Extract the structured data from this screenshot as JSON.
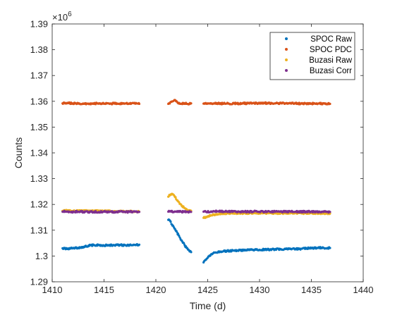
{
  "chart_data": {
    "type": "scatter",
    "xlabel": "Time (d)",
    "ylabel": "Counts",
    "y_multiplier_label": "×10",
    "y_multiplier_exponent": "6",
    "xlim": [
      1410,
      1440
    ],
    "ylim": [
      1.29,
      1.39
    ],
    "xticks": [
      1410,
      1415,
      1420,
      1425,
      1430,
      1435,
      1440
    ],
    "xtick_labels": [
      "1410",
      "1415",
      "1420",
      "1425",
      "1430",
      "1435",
      "1440"
    ],
    "yticks": [
      1.29,
      1.3,
      1.31,
      1.32,
      1.33,
      1.34,
      1.35,
      1.36,
      1.37,
      1.38,
      1.39
    ],
    "ytick_labels": [
      "1.29",
      "1.3",
      "1.31",
      "1.32",
      "1.33",
      "1.34",
      "1.35",
      "1.36",
      "1.37",
      "1.38",
      "1.39"
    ],
    "grid": false,
    "legend_position": "top-right",
    "series": [
      {
        "name": "SPOC Raw",
        "color": "#0072BD",
        "points": [
          [
            1411.0,
            1.303
          ],
          [
            1411.5,
            1.3028
          ],
          [
            1412.0,
            1.303
          ],
          [
            1412.5,
            1.3032
          ],
          [
            1413.0,
            1.3035
          ],
          [
            1413.5,
            1.304
          ],
          [
            1414.0,
            1.3042
          ],
          [
            1414.5,
            1.3042
          ],
          [
            1415.0,
            1.3041
          ],
          [
            1415.5,
            1.3042
          ],
          [
            1416.0,
            1.3042
          ],
          [
            1416.5,
            1.3043
          ],
          [
            1417.0,
            1.3042
          ],
          [
            1417.5,
            1.3042
          ],
          [
            1418.0,
            1.3043
          ],
          [
            1418.4,
            1.3044
          ],
          [
            1421.2,
            1.314
          ],
          [
            1421.4,
            1.3135
          ],
          [
            1421.6,
            1.3118
          ],
          [
            1421.9,
            1.31
          ],
          [
            1422.2,
            1.308
          ],
          [
            1422.5,
            1.306
          ],
          [
            1422.8,
            1.304
          ],
          [
            1423.1,
            1.3025
          ],
          [
            1423.4,
            1.3015
          ],
          [
            1424.6,
            1.2975
          ],
          [
            1424.8,
            1.2985
          ],
          [
            1425.1,
            1.2998
          ],
          [
            1425.5,
            1.301
          ],
          [
            1426.0,
            1.3015
          ],
          [
            1426.5,
            1.3018
          ],
          [
            1427.0,
            1.302
          ],
          [
            1427.5,
            1.3021
          ],
          [
            1428.0,
            1.3022
          ],
          [
            1428.5,
            1.3023
          ],
          [
            1429.0,
            1.3023
          ],
          [
            1429.5,
            1.3024
          ],
          [
            1430.0,
            1.3024
          ],
          [
            1430.5,
            1.3025
          ],
          [
            1431.0,
            1.3025
          ],
          [
            1431.5,
            1.3026
          ],
          [
            1432.0,
            1.3026
          ],
          [
            1432.5,
            1.3027
          ],
          [
            1433.0,
            1.3027
          ],
          [
            1433.5,
            1.3028
          ],
          [
            1434.0,
            1.3028
          ],
          [
            1434.5,
            1.303
          ],
          [
            1435.0,
            1.3031
          ],
          [
            1435.5,
            1.3031
          ],
          [
            1436.0,
            1.3032
          ],
          [
            1436.8,
            1.3031
          ]
        ]
      },
      {
        "name": "SPOC PDC",
        "color": "#D95319",
        "points": [
          [
            1411.0,
            1.3592
          ],
          [
            1411.5,
            1.3593
          ],
          [
            1412.0,
            1.3592
          ],
          [
            1412.5,
            1.3591
          ],
          [
            1413.0,
            1.359
          ],
          [
            1413.5,
            1.3591
          ],
          [
            1414.0,
            1.3591
          ],
          [
            1414.5,
            1.3592
          ],
          [
            1415.0,
            1.3591
          ],
          [
            1415.5,
            1.3591
          ],
          [
            1416.0,
            1.3592
          ],
          [
            1416.5,
            1.3591
          ],
          [
            1417.0,
            1.3591
          ],
          [
            1417.5,
            1.3591
          ],
          [
            1418.0,
            1.3591
          ],
          [
            1418.4,
            1.359
          ],
          [
            1421.2,
            1.359
          ],
          [
            1421.5,
            1.3598
          ],
          [
            1421.8,
            1.3605
          ],
          [
            1422.1,
            1.3595
          ],
          [
            1422.4,
            1.359
          ],
          [
            1422.7,
            1.3593
          ],
          [
            1423.0,
            1.359
          ],
          [
            1423.4,
            1.3592
          ],
          [
            1424.6,
            1.3591
          ],
          [
            1425.0,
            1.3592
          ],
          [
            1425.5,
            1.3591
          ],
          [
            1426.0,
            1.3592
          ],
          [
            1426.5,
            1.3591
          ],
          [
            1427.0,
            1.3591
          ],
          [
            1427.5,
            1.3592
          ],
          [
            1428.0,
            1.3591
          ],
          [
            1428.5,
            1.3592
          ],
          [
            1429.0,
            1.3592
          ],
          [
            1429.5,
            1.3593
          ],
          [
            1430.0,
            1.3592
          ],
          [
            1430.5,
            1.3593
          ],
          [
            1431.0,
            1.3592
          ],
          [
            1431.5,
            1.3592
          ],
          [
            1432.0,
            1.3593
          ],
          [
            1432.5,
            1.3592
          ],
          [
            1433.0,
            1.3592
          ],
          [
            1433.5,
            1.3592
          ],
          [
            1434.0,
            1.3591
          ],
          [
            1434.5,
            1.3592
          ],
          [
            1435.0,
            1.3591
          ],
          [
            1435.5,
            1.3592
          ],
          [
            1436.0,
            1.3591
          ],
          [
            1436.8,
            1.359
          ]
        ]
      },
      {
        "name": "Buzasi Raw",
        "color": "#EDB120",
        "points": [
          [
            1411.0,
            1.3175
          ],
          [
            1411.5,
            1.3176
          ],
          [
            1412.0,
            1.3175
          ],
          [
            1412.5,
            1.3176
          ],
          [
            1413.0,
            1.3175
          ],
          [
            1413.5,
            1.3175
          ],
          [
            1414.0,
            1.3174
          ],
          [
            1414.5,
            1.3175
          ],
          [
            1415.0,
            1.3174
          ],
          [
            1415.5,
            1.3174
          ],
          [
            1416.0,
            1.3174
          ],
          [
            1416.5,
            1.3173
          ],
          [
            1417.0,
            1.3173
          ],
          [
            1417.5,
            1.3173
          ],
          [
            1418.0,
            1.3172
          ],
          [
            1418.4,
            1.3172
          ],
          [
            1421.2,
            1.323
          ],
          [
            1421.4,
            1.3238
          ],
          [
            1421.6,
            1.324
          ],
          [
            1421.8,
            1.3232
          ],
          [
            1422.1,
            1.3215
          ],
          [
            1422.4,
            1.32
          ],
          [
            1422.7,
            1.3188
          ],
          [
            1423.0,
            1.318
          ],
          [
            1423.4,
            1.3175
          ],
          [
            1424.6,
            1.3148
          ],
          [
            1424.9,
            1.3152
          ],
          [
            1425.3,
            1.3158
          ],
          [
            1425.8,
            1.3162
          ],
          [
            1426.3,
            1.3165
          ],
          [
            1427.0,
            1.3166
          ],
          [
            1427.5,
            1.3166
          ],
          [
            1428.0,
            1.3166
          ],
          [
            1428.5,
            1.3166
          ],
          [
            1429.0,
            1.3166
          ],
          [
            1429.5,
            1.3166
          ],
          [
            1430.0,
            1.3166
          ],
          [
            1430.5,
            1.3166
          ],
          [
            1431.0,
            1.3166
          ],
          [
            1431.5,
            1.3166
          ],
          [
            1432.0,
            1.3166
          ],
          [
            1432.5,
            1.3166
          ],
          [
            1433.0,
            1.3166
          ],
          [
            1433.5,
            1.3166
          ],
          [
            1434.0,
            1.3166
          ],
          [
            1434.5,
            1.3166
          ],
          [
            1435.0,
            1.3166
          ],
          [
            1435.5,
            1.3166
          ],
          [
            1436.0,
            1.3166
          ],
          [
            1436.8,
            1.3165
          ]
        ]
      },
      {
        "name": "Buzasi Corr",
        "color": "#7E2F8E",
        "points": [
          [
            1411.0,
            1.3172
          ],
          [
            1411.5,
            1.3172
          ],
          [
            1412.0,
            1.3171
          ],
          [
            1412.5,
            1.3172
          ],
          [
            1413.0,
            1.3171
          ],
          [
            1413.5,
            1.3171
          ],
          [
            1414.0,
            1.3171
          ],
          [
            1414.5,
            1.3171
          ],
          [
            1415.0,
            1.3172
          ],
          [
            1415.5,
            1.3171
          ],
          [
            1416.0,
            1.3171
          ],
          [
            1416.5,
            1.3172
          ],
          [
            1417.0,
            1.3171
          ],
          [
            1417.5,
            1.3171
          ],
          [
            1418.0,
            1.3172
          ],
          [
            1418.4,
            1.3171
          ],
          [
            1421.2,
            1.3172
          ],
          [
            1421.5,
            1.3172
          ],
          [
            1421.8,
            1.3172
          ],
          [
            1422.1,
            1.3171
          ],
          [
            1422.4,
            1.3172
          ],
          [
            1422.7,
            1.3171
          ],
          [
            1423.0,
            1.3171
          ],
          [
            1423.4,
            1.3171
          ],
          [
            1424.6,
            1.3172
          ],
          [
            1425.0,
            1.3172
          ],
          [
            1425.5,
            1.3173
          ],
          [
            1426.0,
            1.3173
          ],
          [
            1426.5,
            1.3173
          ],
          [
            1427.0,
            1.3172
          ],
          [
            1427.5,
            1.3173
          ],
          [
            1428.0,
            1.3172
          ],
          [
            1428.5,
            1.3172
          ],
          [
            1429.0,
            1.3172
          ],
          [
            1429.5,
            1.3173
          ],
          [
            1430.0,
            1.3172
          ],
          [
            1430.5,
            1.3172
          ],
          [
            1431.0,
            1.3172
          ],
          [
            1431.5,
            1.3172
          ],
          [
            1432.0,
            1.3172
          ],
          [
            1432.5,
            1.3172
          ],
          [
            1433.0,
            1.3172
          ],
          [
            1433.5,
            1.3172
          ],
          [
            1434.0,
            1.3172
          ],
          [
            1434.5,
            1.3172
          ],
          [
            1435.0,
            1.3172
          ],
          [
            1435.5,
            1.3171
          ],
          [
            1436.0,
            1.3172
          ],
          [
            1436.8,
            1.3171
          ]
        ]
      }
    ]
  }
}
